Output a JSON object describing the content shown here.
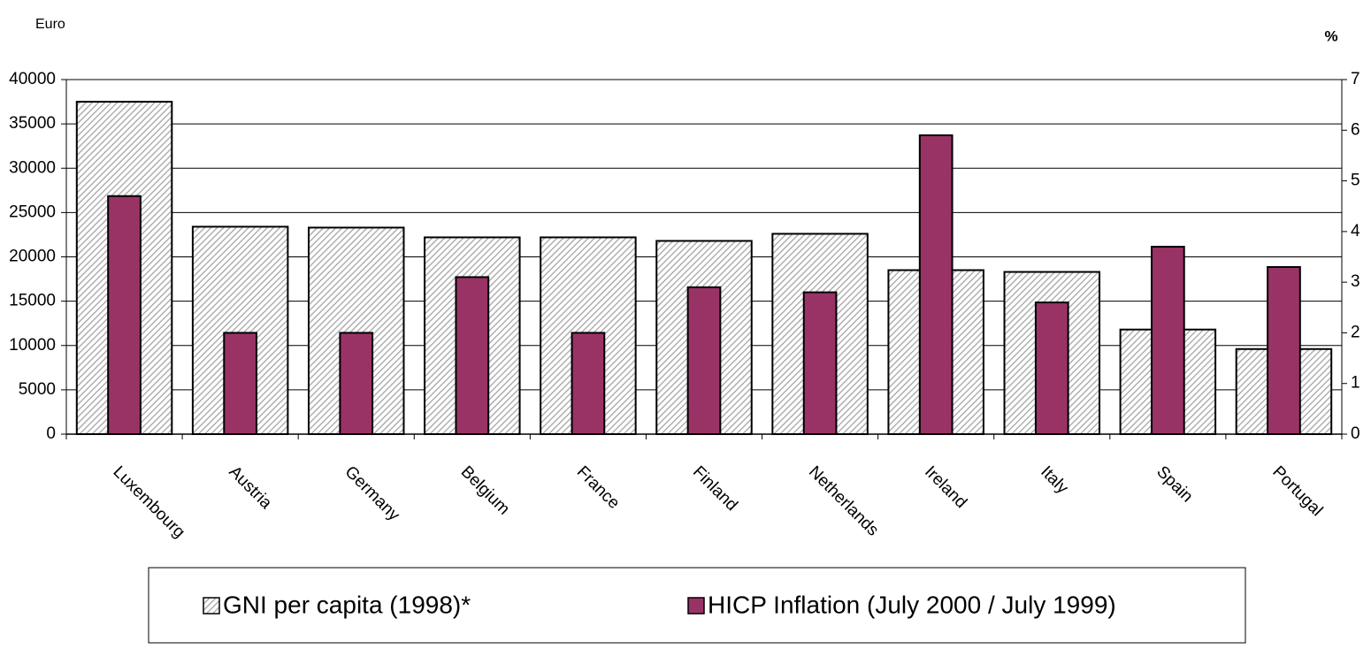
{
  "chart_data": {
    "type": "bar",
    "y_label": "Euro",
    "y2_label": "%",
    "categories": [
      "Luxembourg",
      "Austria",
      "Germany",
      "Belgium",
      "France",
      "Finland",
      "Netherlands",
      "Ireland",
      "Italy",
      "Spain",
      "Portugal"
    ],
    "series": [
      {
        "name": "GNI per capita (1998)*",
        "color": "#b0b0b0",
        "values": [
          37500,
          23400,
          23300,
          22200,
          22200,
          21800,
          22600,
          18500,
          18300,
          11800,
          9600
        ]
      },
      {
        "name": "HICP Inflation (July 2000 / July 1999)",
        "color": "#993366",
        "axis": "y2",
        "values": [
          4.7,
          2.0,
          2.0,
          3.1,
          2.0,
          2.9,
          2.8,
          5.9,
          2.6,
          3.7,
          3.3
        ]
      }
    ],
    "ylim": [
      0,
      40000
    ],
    "yticks": [
      0,
      5000,
      10000,
      15000,
      20000,
      25000,
      30000,
      35000,
      40000
    ],
    "y2lim": [
      0,
      7
    ],
    "y2ticks": [
      0,
      1,
      2,
      3,
      4,
      5,
      6,
      7
    ],
    "grid": true
  }
}
